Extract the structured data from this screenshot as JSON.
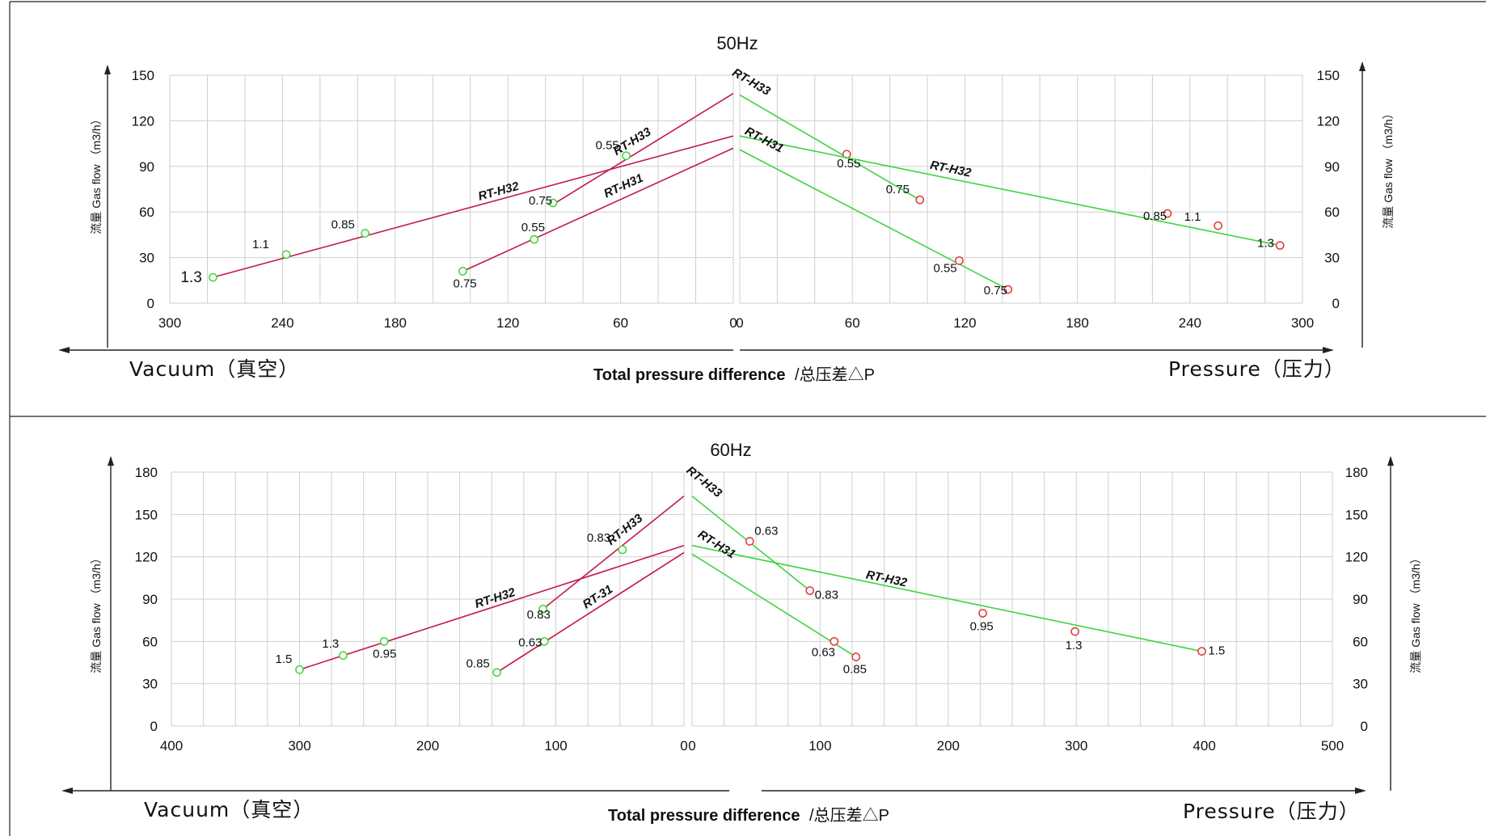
{
  "panels": [
    {
      "title": "50Hz",
      "vacuum_label": "Vacuum（真空）",
      "pressure_label": "Pressure（压力）",
      "xlabel_bold": "Total pressure difference",
      "xlabel_rest": "/总压差△P",
      "ylabel": "流量 Gas flow （m3/h）",
      "chart_data": [
        {
          "type": "line",
          "side": "vacuum",
          "title": "",
          "xlabel": "Total pressure difference /总压差△P",
          "ylabel": "流量 Gas flow （m3/h）",
          "xlim": [
            300,
            0
          ],
          "ylim": [
            0,
            150
          ],
          "x_ticks": [
            300,
            240,
            180,
            120,
            60,
            0
          ],
          "y_ticks": [
            0,
            30,
            60,
            90,
            120,
            150
          ],
          "series": [
            {
              "name": "RT-H32",
              "color": "#c3174c",
              "line": [
                [
                  277,
                  17
                ],
                [
                  0,
                  110
                ]
              ],
              "points": [
                [
                  277,
                  17,
                  "1.3"
                ],
                [
                  238,
                  32,
                  "1.1"
                ],
                [
                  196,
                  46,
                  "0.85"
                ]
              ]
            },
            {
              "name": "RT-H33",
              "color": "#c3174c",
              "line": [
                [
                  96,
                  65
                ],
                [
                  0,
                  138
                ]
              ],
              "points": [
                [
                  96,
                  66,
                  "0.75"
                ],
                [
                  57,
                  97,
                  "0.55"
                ]
              ]
            },
            {
              "name": "RT-H31",
              "color": "#c3174c",
              "line": [
                [
                  144,
                  21
                ],
                [
                  0,
                  102
                ]
              ],
              "points": [
                [
                  144,
                  21,
                  "0.75"
                ],
                [
                  106,
                  42,
                  "0.55"
                ]
              ]
            }
          ],
          "grid": true
        },
        {
          "type": "line",
          "side": "pressure",
          "title": "",
          "xlabel": "Total pressure difference /总压差△P",
          "ylabel": "流量 Gas flow （m3/h）",
          "xlim": [
            0,
            300
          ],
          "ylim": [
            0,
            150
          ],
          "x_ticks": [
            0,
            60,
            120,
            180,
            240,
            300
          ],
          "y_ticks": [
            0,
            30,
            60,
            90,
            120,
            150
          ],
          "series": [
            {
              "name": "RT-H33",
              "color": "#3ed43e",
              "line": [
                [
                  0,
                  137
                ],
                [
                  96,
                  68
                ]
              ],
              "points": [
                [
                  57,
                  98,
                  "0.55"
                ],
                [
                  96,
                  68,
                  "0.75"
                ]
              ]
            },
            {
              "name": "RT-H32",
              "color": "#3ed43e",
              "line": [
                [
                  0,
                  110
                ],
                [
                  288,
                  38
                ]
              ],
              "points": [
                [
                  228,
                  59,
                  "0.85"
                ],
                [
                  255,
                  51,
                  "1.1"
                ],
                [
                  288,
                  38,
                  "1.3"
                ]
              ]
            },
            {
              "name": "RT-H31",
              "color": "#3ed43e",
              "line": [
                [
                  0,
                  101
                ],
                [
                  143,
                  9
                ]
              ],
              "points": [
                [
                  117,
                  28,
                  "0.55"
                ],
                [
                  143,
                  9,
                  "0.75"
                ]
              ]
            }
          ],
          "grid": true
        }
      ]
    },
    {
      "title": "60Hz",
      "vacuum_label": "Vacuum（真空）",
      "pressure_label": "Pressure（压力）",
      "xlabel_bold": "Total pressure difference",
      "xlabel_rest": "/总压差△P",
      "ylabel": "流量 Gas flow （m3/h）",
      "chart_data": [
        {
          "type": "line",
          "side": "vacuum",
          "title": "",
          "xlabel": "Total pressure difference /总压差△P",
          "ylabel": "流量 Gas flow （m3/h）",
          "xlim": [
            400,
            0
          ],
          "ylim": [
            0,
            180
          ],
          "x_ticks": [
            400,
            300,
            200,
            100,
            0
          ],
          "y_ticks": [
            0,
            30,
            60,
            90,
            120,
            150,
            180
          ],
          "series": [
            {
              "name": "RT-H32",
              "color": "#c3174c",
              "line": [
                [
                  300,
                  40
                ],
                [
                  0,
                  128
                ]
              ],
              "points": [
                [
                  300,
                  40,
                  "1.5"
                ],
                [
                  266,
                  50,
                  "1.3"
                ],
                [
                  234,
                  60,
                  "0.95"
                ]
              ]
            },
            {
              "name": "RT-H33",
              "color": "#c3174c",
              "line": [
                [
                  110,
                  83
                ],
                [
                  0,
                  163
                ]
              ],
              "points": [
                [
                  110,
                  83,
                  "0.83"
                ],
                [
                  48,
                  125,
                  "0.83"
                ]
              ]
            },
            {
              "name": "RT-31",
              "color": "#c3174c",
              "line": [
                [
                  146,
                  38
                ],
                [
                  0,
                  123
                ]
              ],
              "points": [
                [
                  146,
                  38,
                  "0.85"
                ],
                [
                  109,
                  60,
                  "0.63"
                ]
              ]
            }
          ],
          "grid": true
        },
        {
          "type": "line",
          "side": "pressure",
          "title": "",
          "xlabel": "Total pressure difference /总压差△P",
          "ylabel": "流量 Gas flow （m3/h）",
          "xlim": [
            0,
            500
          ],
          "ylim": [
            0,
            180
          ],
          "x_ticks": [
            0,
            100,
            200,
            300,
            400,
            500
          ],
          "y_ticks": [
            0,
            30,
            60,
            90,
            120,
            150,
            180
          ],
          "series": [
            {
              "name": "RT-H33",
              "color": "#3ed43e",
              "line": [
                [
                  0,
                  163
                ],
                [
                  92,
                  96
                ]
              ],
              "points": [
                [
                  45,
                  131,
                  "0.63"
                ],
                [
                  92,
                  96,
                  "0.83"
                ]
              ]
            },
            {
              "name": "RT-H32",
              "color": "#3ed43e",
              "line": [
                [
                  0,
                  128
                ],
                [
                  398,
                  53
                ]
              ],
              "points": [
                [
                  227,
                  80,
                  "0.95"
                ],
                [
                  299,
                  67,
                  "1.3"
                ],
                [
                  398,
                  53,
                  "1.5"
                ]
              ]
            },
            {
              "name": "RT-H31",
              "color": "#3ed43e",
              "line": [
                [
                  0,
                  122
                ],
                [
                  128,
                  49
                ]
              ],
              "points": [
                [
                  111,
                  60,
                  "0.63"
                ],
                [
                  128,
                  49,
                  "0.85"
                ]
              ]
            }
          ],
          "grid": true
        }
      ]
    }
  ]
}
